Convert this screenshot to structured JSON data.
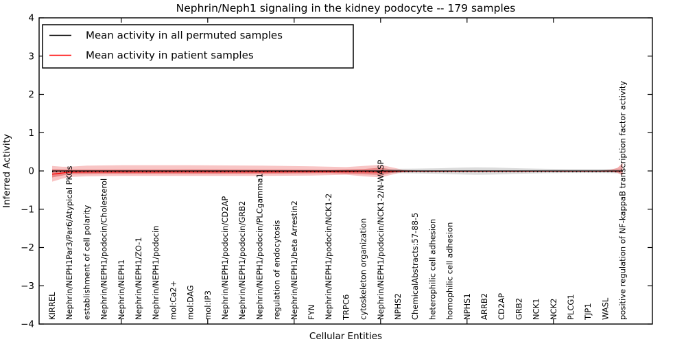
{
  "chart_data": {
    "type": "line",
    "title": "Nephrin/Neph1 signaling in the kidney podocyte -- 179 samples",
    "xlabel": "Cellular Entities",
    "ylabel": "Inferred Activity",
    "ylim": [
      -4,
      4
    ],
    "yticks": [
      4,
      3,
      2,
      1,
      0,
      -1,
      -2,
      -3,
      -4
    ],
    "grid": false,
    "legend_position": "upper-left",
    "legend": [
      {
        "label": "Mean activity in all permuted samples",
        "color": "#000000"
      },
      {
        "label": "Mean activity in patient samples",
        "color": "#ff0000"
      }
    ],
    "categories": [
      "KIRREL",
      "Nephrin/NEPH1Par3/Par6/Atypical PKCs",
      "establishment of cell polarity",
      "Nephrin/NEPH1/podocin/Cholesterol",
      "Nephrin/NEPH1",
      "Nephrin/NEPH1/ZO-1",
      "Nephrin/NEPH1/podocin",
      "mol:Ca2+",
      "mol:DAG",
      "mol:IP3",
      "Nephrin/NEPH1/podocin/CD2AP",
      "Nephrin/NEPH1/podocin/GRB2",
      "Nephrin/NEPH1/podocin/PLCgamma1",
      "regulation of endocytosis",
      "Nephrin/NEPH1/beta Arrestin2",
      "FYN",
      "Nephrin/NEPH1/podocin/NCK1-2",
      "TRPC6",
      "cytoskeleton organization",
      "Nephrin/NEPH1/podocin/NCK1-2/N-WASP",
      "NPHS2",
      "ChemicalAbstracts:57-88-5",
      "heterophilic cell adhesion",
      "homophilic cell adhesion",
      "NPHS1",
      "ARRB2",
      "CD2AP",
      "GRB2",
      "NCK1",
      "NCK2",
      "PLCG1",
      "TJP1",
      "WASL",
      "positive regulation of NF-kappaB transcription factor activity"
    ],
    "series": [
      {
        "name": "Mean activity in all permuted samples",
        "color": "#000000",
        "style": "solid",
        "values": [
          0,
          0,
          0,
          0,
          0,
          0,
          0,
          0,
          0,
          0,
          0,
          0,
          0,
          0,
          0,
          0,
          0,
          0,
          0,
          0,
          0,
          0,
          0,
          0,
          0,
          0,
          0,
          0,
          0,
          0,
          0,
          0,
          0,
          0
        ]
      },
      {
        "name": "Mean activity in patient samples",
        "color": "#ff0000",
        "style": "solid",
        "values": [
          -0.085,
          -0.033,
          -0.03,
          -0.03,
          -0.03,
          -0.03,
          -0.03,
          -0.028,
          -0.028,
          -0.028,
          -0.028,
          -0.028,
          -0.027,
          -0.027,
          -0.026,
          -0.025,
          -0.025,
          -0.024,
          -0.026,
          -0.03,
          -0.014,
          -0.01,
          -0.01,
          -0.01,
          -0.01,
          -0.01,
          -0.009,
          -0.009,
          -0.008,
          -0.008,
          -0.008,
          -0.008,
          -0.008,
          -0.006
        ]
      }
    ],
    "dotted_line": {
      "color": "#000000",
      "value": -0.02,
      "from": 0,
      "to": 33
    },
    "bands": [
      {
        "name": "patient-band-outer",
        "color": "#e84040",
        "opacity": 0.3,
        "points": [
          [
            0,
            0.13,
            -0.28
          ],
          [
            0.6,
            0.11,
            -0.2
          ],
          [
            1,
            0.11,
            -0.16
          ],
          [
            2,
            0.14,
            -0.14
          ],
          [
            4,
            0.15,
            -0.13
          ],
          [
            8,
            0.15,
            -0.13
          ],
          [
            12,
            0.14,
            -0.13
          ],
          [
            15,
            0.12,
            -0.12
          ],
          [
            17,
            0.1,
            -0.1
          ],
          [
            18,
            0.13,
            -0.14
          ],
          [
            19,
            0.16,
            -0.17
          ],
          [
            19.8,
            0.08,
            -0.08
          ],
          [
            20.3,
            0.03,
            -0.03
          ],
          [
            21,
            0.015,
            -0.015
          ]
        ]
      },
      {
        "name": "patient-band-core",
        "color": "#d02020",
        "opacity": 0.38,
        "points": [
          [
            0,
            0.045,
            -0.17
          ],
          [
            1,
            0.035,
            -0.085
          ],
          [
            3,
            0.035,
            -0.075
          ],
          [
            8,
            0.04,
            -0.075
          ],
          [
            13,
            0.035,
            -0.07
          ],
          [
            16,
            0.03,
            -0.06
          ],
          [
            18,
            0.05,
            -0.085
          ],
          [
            19,
            0.085,
            -0.105
          ],
          [
            19.8,
            0.03,
            -0.04
          ],
          [
            20.5,
            0.012,
            -0.02
          ]
        ]
      },
      {
        "name": "permuted-band-gray",
        "color": "#999999",
        "opacity": 0.35,
        "points": [
          [
            18.3,
            0.02,
            -0.02
          ],
          [
            19.2,
            0.045,
            -0.05
          ],
          [
            20,
            0.055,
            -0.06
          ],
          [
            21,
            0.06,
            -0.065
          ],
          [
            22.3,
            0.07,
            -0.075
          ],
          [
            23.5,
            0.085,
            -0.09
          ],
          [
            24.5,
            0.095,
            -0.1
          ],
          [
            25.5,
            0.09,
            -0.095
          ],
          [
            27,
            0.07,
            -0.075
          ],
          [
            28.5,
            0.055,
            -0.06
          ],
          [
            30,
            0.05,
            -0.055
          ],
          [
            31.5,
            0.05,
            -0.055
          ],
          [
            32.5,
            0.055,
            -0.06
          ],
          [
            33,
            0.06,
            -0.065
          ]
        ]
      },
      {
        "name": "patient-band-end-flare",
        "color": "#e84040",
        "opacity": 0.42,
        "points": [
          [
            31.7,
            0.012,
            -0.012
          ],
          [
            32.3,
            0.03,
            -0.02
          ],
          [
            32.7,
            0.08,
            -0.05
          ],
          [
            33,
            0.2,
            -0.11
          ]
        ]
      }
    ]
  }
}
